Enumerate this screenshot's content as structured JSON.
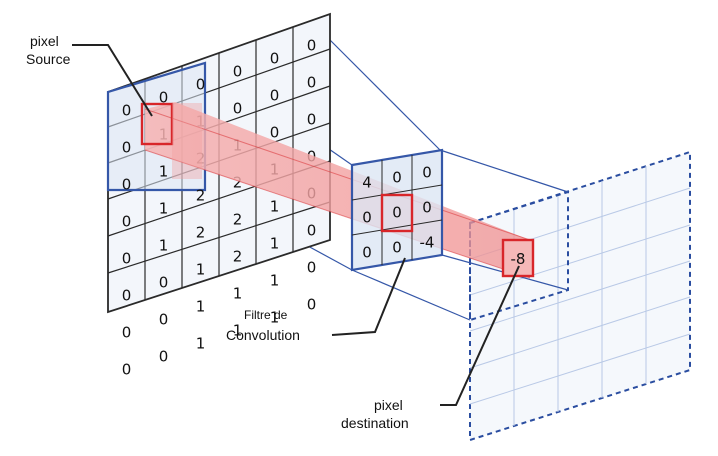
{
  "labels": {
    "source_line1": "pixel",
    "source_line2": "Source",
    "filter_line1": "Filtre de",
    "filter_line2": "Convolution",
    "dest_line1": "pixel",
    "dest_line2": "destination"
  },
  "input_grid": [
    [
      "0",
      "0",
      "0",
      "0",
      "0",
      "0"
    ],
    [
      "0",
      "1",
      "1",
      "0",
      "0",
      "0"
    ],
    [
      "0",
      "1",
      "2",
      "1",
      "0",
      "0"
    ],
    [
      "0",
      "1",
      "2",
      "2",
      "1",
      "0"
    ],
    [
      "0",
      "1",
      "2",
      "2",
      "1",
      "0"
    ],
    [
      "0",
      "0",
      "1",
      "2",
      "1",
      "0"
    ],
    [
      "0",
      "0",
      "1",
      "1",
      "1",
      "0"
    ],
    [
      "0",
      "0",
      "1",
      "1",
      "1",
      "0"
    ]
  ],
  "source_grid_visible": [
    [
      "0",
      "0",
      "0"
    ],
    [
      "0",
      "1",
      "1"
    ],
    [
      "0",
      "1",
      "2"
    ]
  ],
  "kernel": [
    [
      "4",
      "0",
      "0"
    ],
    [
      "0",
      "0",
      "0"
    ],
    [
      "0",
      "0",
      "-4"
    ]
  ],
  "output_value": "-8",
  "colors": {
    "grid_line": "#2a2a2a",
    "blue_frame": "#3557a8",
    "red_highlight": "#d8262a",
    "ray_fill": "#f3a6a6",
    "kernel_fill": "#dce6f4",
    "dashed_grid": "#2a4da0"
  }
}
